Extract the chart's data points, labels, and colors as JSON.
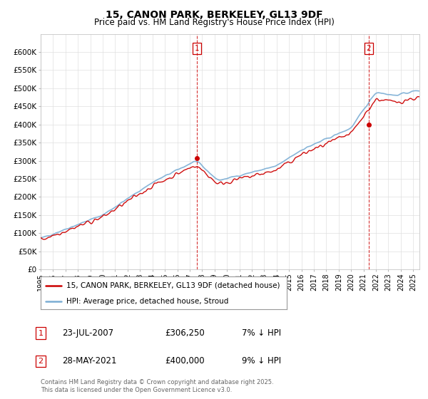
{
  "title": "15, CANON PARK, BERKELEY, GL13 9DF",
  "subtitle": "Price paid vs. HM Land Registry's House Price Index (HPI)",
  "ylim": [
    0,
    650000
  ],
  "yticks": [
    0,
    50000,
    100000,
    150000,
    200000,
    250000,
    300000,
    350000,
    400000,
    450000,
    500000,
    550000,
    600000
  ],
  "legend1": "15, CANON PARK, BERKELEY, GL13 9DF (detached house)",
  "legend2": "HPI: Average price, detached house, Stroud",
  "sale1_date": "23-JUL-2007",
  "sale1_price": "£306,250",
  "sale1_hpi": "7% ↓ HPI",
  "sale1_year": 2007.583,
  "sale1_price_val": 306250,
  "sale2_date": "28-MAY-2021",
  "sale2_price": "£400,000",
  "sale2_hpi": "9% ↓ HPI",
  "sale2_year": 2021.417,
  "sale2_price_val": 400000,
  "copyright": "Contains HM Land Registry data © Crown copyright and database right 2025.\nThis data is licensed under the Open Government Licence v3.0.",
  "line_color_price": "#cc0000",
  "line_color_hpi": "#7aadd4",
  "vline_color": "#cc0000",
  "background_color": "#ffffff",
  "grid_color": "#e0e0e0",
  "start_year": 1995,
  "end_year": 2025
}
